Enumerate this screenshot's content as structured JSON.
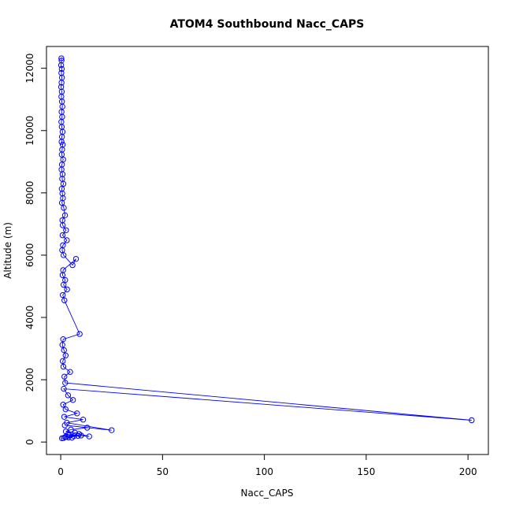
{
  "chart_data": {
    "type": "line",
    "title": "ATOM4 Southbound Nacc_CAPS",
    "xlabel": "Nacc_CAPS",
    "ylabel": "Altitude (m)",
    "xlim": [
      -7,
      210
    ],
    "ylim": [
      -400,
      12700
    ],
    "x_ticks": [
      0,
      50,
      100,
      150,
      200
    ],
    "y_ticks": [
      0,
      2000,
      4000,
      6000,
      8000,
      10000,
      12000
    ],
    "grid": false,
    "series_color": "#0000ff",
    "series": [
      {
        "x": [
          0.3,
          0.4,
          0.2,
          0.5,
          0.3,
          0.6,
          0.4,
          0.2,
          0.5,
          0.3,
          0.6,
          0.8,
          0.4,
          0.7,
          0.3,
          0.5,
          0.9,
          0.6,
          0.4,
          1.0,
          0.7,
          0.5,
          1.2,
          0.6,
          0.4,
          0.9,
          0.7,
          1.3,
          0.5,
          0.8,
          1.1,
          0.6,
          1.5,
          2.1,
          0.8,
          1.0,
          2.6,
          0.9,
          3.0,
          1.1,
          0.7,
          1.4,
          5.8,
          7.5,
          1.2,
          0.9,
          2.2,
          1.4,
          3.1,
          1.0,
          1.8,
          9.3,
          1.2,
          0.8,
          1.6,
          2.4,
          1.0,
          1.3,
          4.6,
          1.8,
          2.2,
          201.8,
          1.5,
          3.6,
          6.0,
          1.2,
          2.4,
          8.0,
          1.7,
          11.0,
          3.0,
          25.0,
          2.0,
          13.0,
          5.0,
          2.5,
          7.0,
          9.0,
          14.0,
          3.5,
          10.0,
          4.2,
          6.5,
          2.8,
          8.5,
          3.8,
          5.5,
          2.2,
          1.4,
          0.6
        ],
        "y": [
          12320,
          12250,
          12100,
          11980,
          11850,
          11700,
          11540,
          11400,
          11250,
          11090,
          10930,
          10770,
          10600,
          10440,
          10280,
          10120,
          9960,
          9800,
          9640,
          9550,
          9390,
          9230,
          9070,
          8910,
          8750,
          8600,
          8450,
          8290,
          8130,
          7980,
          7830,
          7680,
          7520,
          7280,
          7120,
          6960,
          6800,
          6640,
          6480,
          6320,
          6160,
          6000,
          5680,
          5880,
          5520,
          5360,
          5200,
          5050,
          4900,
          4720,
          4550,
          3470,
          3300,
          3120,
          2950,
          2780,
          2600,
          2420,
          2250,
          2100,
          1900,
          700,
          1710,
          1500,
          1350,
          1200,
          1050,
          920,
          810,
          720,
          620,
          380,
          540,
          460,
          400,
          340,
          300,
          260,
          180,
          240,
          210,
          220,
          190,
          170,
          200,
          150,
          140,
          160,
          130,
          120
        ]
      }
    ]
  }
}
